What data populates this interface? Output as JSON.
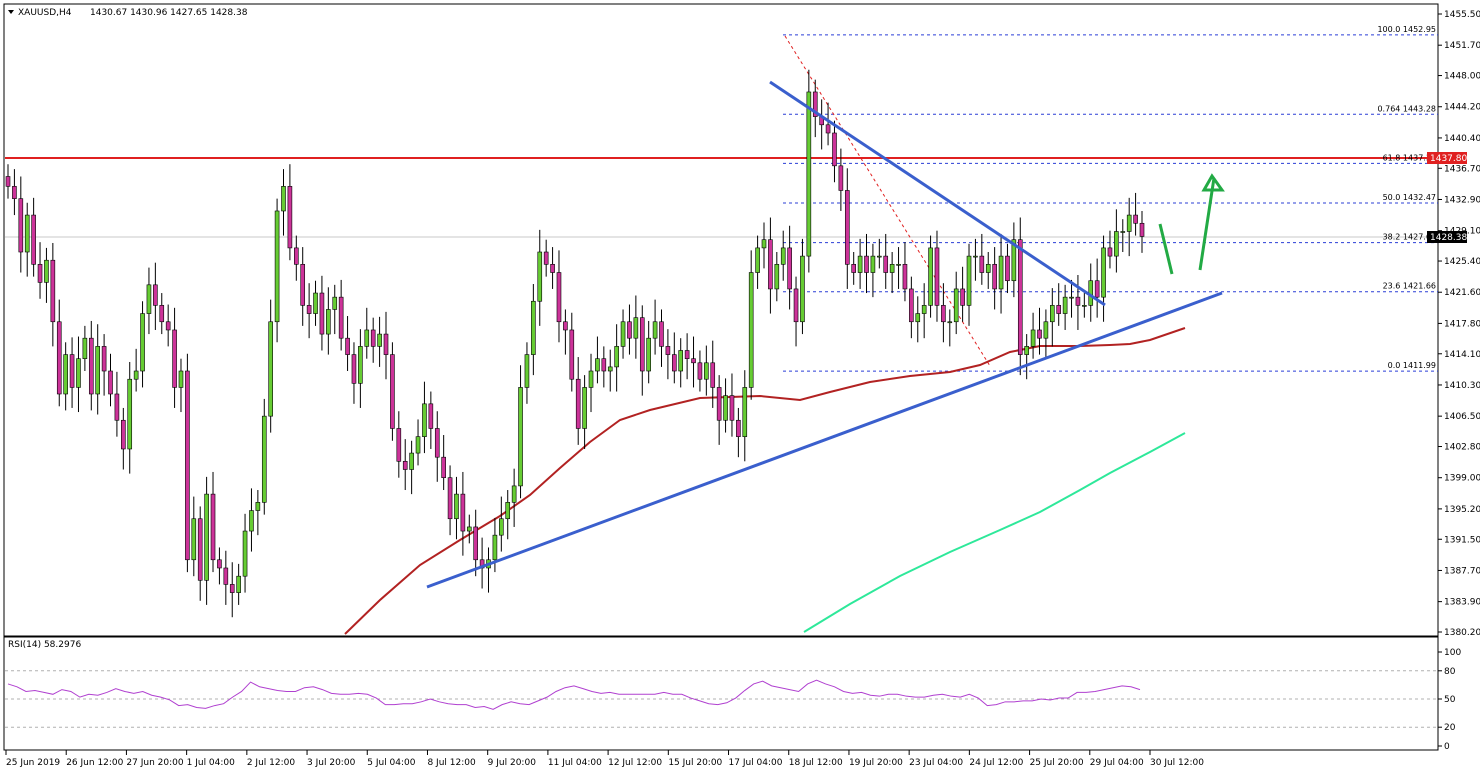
{
  "header": {
    "symbol": "XAUUSD,H4",
    "ohlc": "1430.67 1430.96 1427.65 1428.38"
  },
  "chart_data": {
    "type": "candlestick",
    "symbol": "XAUUSD",
    "timeframe": "H4",
    "ylim": [
      1380.2,
      1455.5
    ],
    "yticks": [
      "1455.50",
      "1451.70",
      "1448.00",
      "1444.20",
      "1440.40",
      "1436.70",
      "1432.90",
      "1429.10",
      "1425.40",
      "1421.60",
      "1417.80",
      "1414.10",
      "1410.30",
      "1406.50",
      "1402.80",
      "1399.00",
      "1395.20",
      "1391.50",
      "1387.70",
      "1383.90",
      "1380.20"
    ],
    "xticks": [
      "25 Jun 2019",
      "26 Jun 12:00",
      "27 Jun 20:00",
      "1 Jul 04:00",
      "2 Jul 12:00",
      "3 Jul 20:00",
      "5 Jul 04:00",
      "8 Jul 12:00",
      "9 Jul 20:00",
      "11 Jul 04:00",
      "12 Jul 12:00",
      "15 Jul 20:00",
      "17 Jul 04:00",
      "18 Jul 12:00",
      "19 Jul 20:00",
      "23 Jul 04:00",
      "24 Jul 12:00",
      "25 Jul 20:00",
      "29 Jul 04:00",
      "30 Jul 12:00"
    ],
    "last_price": "1428.38",
    "resistance_price": "1437.80",
    "fib_levels": [
      {
        "label": "100.0 1452.95",
        "price": 1452.95
      },
      {
        "label": "0.764 1443.28",
        "price": 1443.28
      },
      {
        "label": "61.8 1437.30",
        "price": 1437.3
      },
      {
        "label": "50.0 1432.47",
        "price": 1432.47
      },
      {
        "label": "38.2 1427.64",
        "price": 1427.64
      },
      {
        "label": "23.6 1421.66",
        "price": 1421.66
      },
      {
        "label": "0.0 1411.99",
        "price": 1411.99
      }
    ],
    "closes": [
      1434.5,
      1433.0,
      1426.5,
      1431.0,
      1425.0,
      1422.8,
      1425.5,
      1418.0,
      1409.2,
      1414.0,
      1410.0,
      1413.5,
      1416.0,
      1409.2,
      1415.0,
      1412.0,
      1409.2,
      1406.0,
      1402.5,
      1411.0,
      1412.0,
      1419.0,
      1422.5,
      1420.0,
      1418.0,
      1417.0,
      1410.0,
      1412.0,
      1389.0,
      1394.0,
      1386.5,
      1397.0,
      1389.0,
      1388.0,
      1386.0,
      1385.0,
      1387.0,
      1392.5,
      1395.0,
      1396.0,
      1406.5,
      1418.0,
      1431.5,
      1434.5,
      1427.0,
      1425.0,
      1420.0,
      1419.0,
      1421.5,
      1416.5,
      1419.5,
      1421.0,
      1416.0,
      1414.0,
      1410.5,
      1415.0,
      1417.0,
      1415.0,
      1416.5,
      1414.0,
      1405.0,
      1401.0,
      1400.0,
      1402.0,
      1404.0,
      1408.0,
      1405.0,
      1401.5,
      1399.0,
      1394.0,
      1397.0,
      1392.5,
      1393.0,
      1389.0,
      1388.0,
      1389.0,
      1392.0,
      1394.0,
      1396.0,
      1398.0,
      1410.0,
      1414.0,
      1420.5,
      1426.5,
      1425.0,
      1424.0,
      1418.0,
      1417.0,
      1411.0,
      1405.0,
      1410.0,
      1412.0,
      1413.5,
      1412.0,
      1412.5,
      1415.0,
      1418.0,
      1416.0,
      1418.5,
      1412.0,
      1416.0,
      1418.0,
      1415.0,
      1414.0,
      1412.0,
      1414.5,
      1413.5,
      1413.0,
      1411.0,
      1413.0,
      1410.0,
      1406.0,
      1409.0,
      1406.0,
      1404.0,
      1410.0,
      1424.0,
      1427.0,
      1428.0,
      1422.0,
      1425.0,
      1427.0,
      1422.0,
      1418.0,
      1426.0,
      1446.0,
      1443.0,
      1442.0,
      1441.0,
      1437.0,
      1434.0,
      1425.0,
      1424.0,
      1426.0,
      1424.0,
      1426.0,
      1426.0,
      1424.0,
      1425.0,
      1425.0,
      1422.0,
      1418.0,
      1419.0,
      1420.0,
      1427.0,
      1420.0,
      1418.0,
      1418.0,
      1422.0,
      1420.0,
      1426.0,
      1426.0,
      1424.0,
      1425.0,
      1422.0,
      1426.0,
      1423.0,
      1428.0,
      1414.0,
      1415.0,
      1417.0,
      1416.0,
      1418.0,
      1420.0,
      1419.0,
      1421.0,
      1421.0,
      1420.0,
      1420.0,
      1423.0,
      1421.0,
      1427.0,
      1426.0,
      1429.0,
      1429.0,
      1431.0,
      1430.0,
      1428.4
    ],
    "sma_short": [
      [
        345,
        634
      ],
      [
        380,
        600
      ],
      [
        420,
        565
      ],
      [
        460,
        540
      ],
      [
        500,
        516
      ],
      [
        530,
        495
      ],
      [
        560,
        468
      ],
      [
        590,
        442
      ],
      [
        620,
        420
      ],
      [
        650,
        410
      ],
      [
        700,
        398
      ],
      [
        760,
        396
      ],
      [
        800,
        400
      ],
      [
        830,
        392
      ],
      [
        870,
        382
      ],
      [
        910,
        376
      ],
      [
        950,
        372
      ],
      [
        980,
        365
      ],
      [
        1010,
        352
      ],
      [
        1040,
        346
      ],
      [
        1080,
        346
      ],
      [
        1110,
        345
      ],
      [
        1130,
        344
      ],
      [
        1150,
        340
      ],
      [
        1185,
        328
      ]
    ],
    "sma_long": [
      [
        804,
        632
      ],
      [
        850,
        604
      ],
      [
        900,
        576
      ],
      [
        950,
        552
      ],
      [
        1000,
        530
      ],
      [
        1040,
        512
      ],
      [
        1080,
        490
      ],
      [
        1110,
        473
      ],
      [
        1150,
        452
      ],
      [
        1185,
        433
      ]
    ],
    "trendlines": [
      {
        "from": [
          427,
          587
        ],
        "to": [
          1222,
          293
        ],
        "color": "#3a5fcd"
      },
      {
        "from": [
          770,
          82
        ],
        "to": [
          1105,
          305
        ],
        "color": "#3a5fcd"
      }
    ],
    "fib_anchor": {
      "from": [
        785,
        36
      ],
      "to": [
        990,
        366
      ]
    },
    "arrows": [
      {
        "from": [
          1160,
          224
        ],
        "to": [
          1172,
          274
        ]
      },
      {
        "from": [
          1200,
          270
        ],
        "to": [
          1214,
          178
        ]
      }
    ],
    "rsi": {
      "label": "RSI(14) 58.2976",
      "yticks": [
        "100",
        "80",
        "50",
        "20",
        "0"
      ],
      "values": [
        66,
        63,
        58,
        59,
        57,
        55,
        60,
        58,
        52,
        55,
        54,
        57,
        61,
        58,
        56,
        58,
        54,
        52,
        49,
        43,
        44,
        41,
        40,
        43,
        45,
        52,
        58,
        68,
        63,
        61,
        59,
        58,
        58,
        62,
        63,
        60,
        56,
        55,
        55,
        56,
        55,
        51,
        44,
        44,
        45,
        45,
        47,
        50,
        47,
        45,
        44,
        44,
        41,
        42,
        39,
        44,
        47,
        45,
        44,
        48,
        52,
        58,
        62,
        64,
        61,
        58,
        56,
        57,
        55,
        55,
        55,
        55,
        55,
        57,
        55,
        55,
        51,
        48,
        45,
        44,
        46,
        51,
        59,
        66,
        69,
        64,
        62,
        60,
        58,
        66,
        70,
        66,
        63,
        58,
        56,
        57,
        54,
        53,
        55,
        55,
        53,
        52,
        52,
        54,
        55,
        53,
        52,
        55,
        51,
        43,
        44,
        47,
        47,
        48,
        48,
        50,
        49,
        51,
        51,
        57,
        57,
        58,
        60,
        62,
        64,
        63,
        60
      ]
    }
  }
}
